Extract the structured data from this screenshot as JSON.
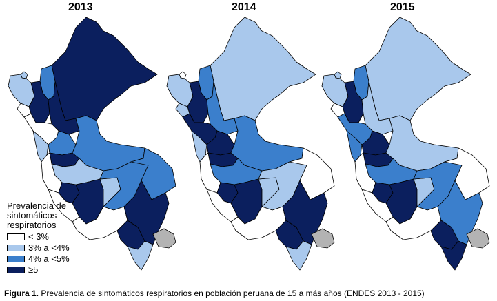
{
  "years": [
    "2013",
    "2014",
    "2015"
  ],
  "legend": {
    "title_lines": [
      "Prevalencia de",
      "sintomáticos",
      "respiratorios"
    ],
    "items": [
      {
        "label": "< 3%",
        "color": "#ffffff"
      },
      {
        "label": "3% a <4%",
        "color": "#a9c8ec"
      },
      {
        "label": "4% a <5%",
        "color": "#3b7fcc"
      },
      {
        "label": "≥5",
        "color": "#0b1f5e"
      }
    ],
    "no_data_color": "#b3b3b3"
  },
  "caption": {
    "label": "Figura 1.",
    "text": "Prevalencia de sintomáticos respiratorios en población peruana de 15 a más años (ENDES 2013 - 2015)"
  },
  "maps": [
    {
      "year": "2013",
      "regions": {
        "loreto": 3,
        "tumbes": 1,
        "piura": 1,
        "amazonas": 2,
        "cajamarca": 3,
        "lambayeque": 0,
        "sanmartin": 3,
        "lalibertad": 0,
        "ancash": 1,
        "huanuco": 2,
        "pasco": 3,
        "ucayali": 2,
        "junin": 1,
        "lima": 0,
        "huancavelica": 3,
        "ayacucho": 3,
        "ica": 0,
        "apurimac": 1,
        "cusco": 2,
        "madrededios": 2,
        "arequipa": 0,
        "puno": 3,
        "moquegua": 3,
        "tacna": 1
      }
    },
    {
      "year": "2014",
      "regions": {
        "loreto": 1,
        "tumbes": 0,
        "piura": 1,
        "amazonas": 2,
        "cajamarca": 3,
        "lambayeque": 1,
        "sanmartin": 2,
        "lalibertad": 3,
        "ancash": 1,
        "huanuco": 3,
        "pasco": 3,
        "ucayali": 2,
        "junin": 2,
        "lima": 0,
        "huancavelica": 3,
        "ayacucho": 3,
        "ica": 0,
        "apurimac": 1,
        "cusco": 1,
        "madrededios": 0,
        "arequipa": 0,
        "puno": 3,
        "moquegua": 3,
        "tacna": 1
      }
    },
    {
      "year": "2015",
      "regions": {
        "loreto": 1,
        "tumbes": 1,
        "piura": 1,
        "amazonas": 2,
        "cajamarca": 3,
        "lambayeque": 0,
        "sanmartin": 1,
        "lalibertad": 2,
        "ancash": 2,
        "huanuco": 3,
        "pasco": 3,
        "ucayali": 1,
        "junin": 2,
        "lima": 0,
        "huancavelica": 3,
        "ayacucho": 3,
        "ica": 0,
        "apurimac": 1,
        "cusco": 2,
        "madrededios": 0,
        "arequipa": 0,
        "puno": 2,
        "moquegua": 3,
        "tacna": 3
      }
    }
  ]
}
